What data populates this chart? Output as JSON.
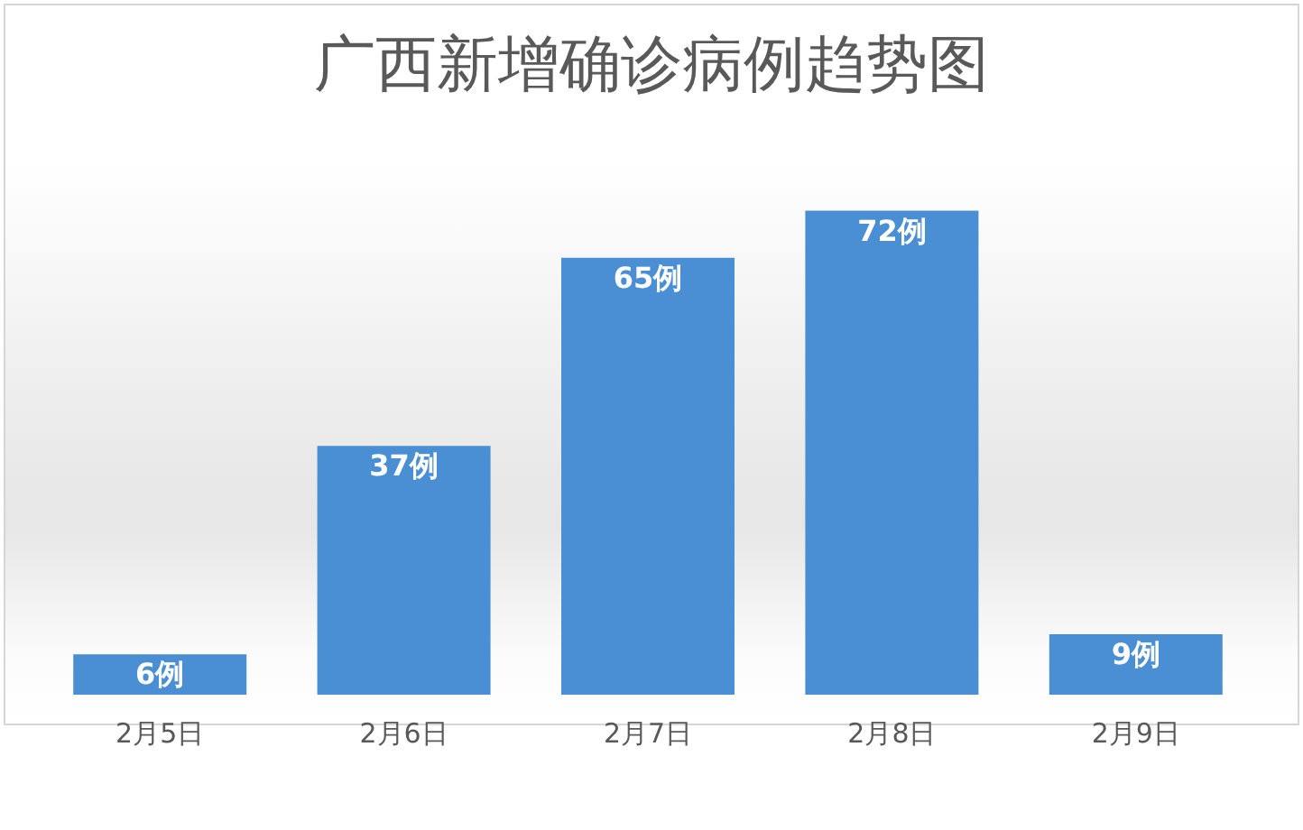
{
  "chart_data": {
    "type": "bar",
    "title": "广西新增确诊病例趋势图",
    "categories": [
      "2月5日",
      "2月6日",
      "2月7日",
      "2月8日",
      "2月9日"
    ],
    "values": [
      6,
      37,
      65,
      72,
      9
    ],
    "color": "#4a8fd4",
    "value_labels": [
      "6例",
      "37例",
      "65例",
      "72例",
      "9例"
    ],
    "tick_labels": "x"
  }
}
